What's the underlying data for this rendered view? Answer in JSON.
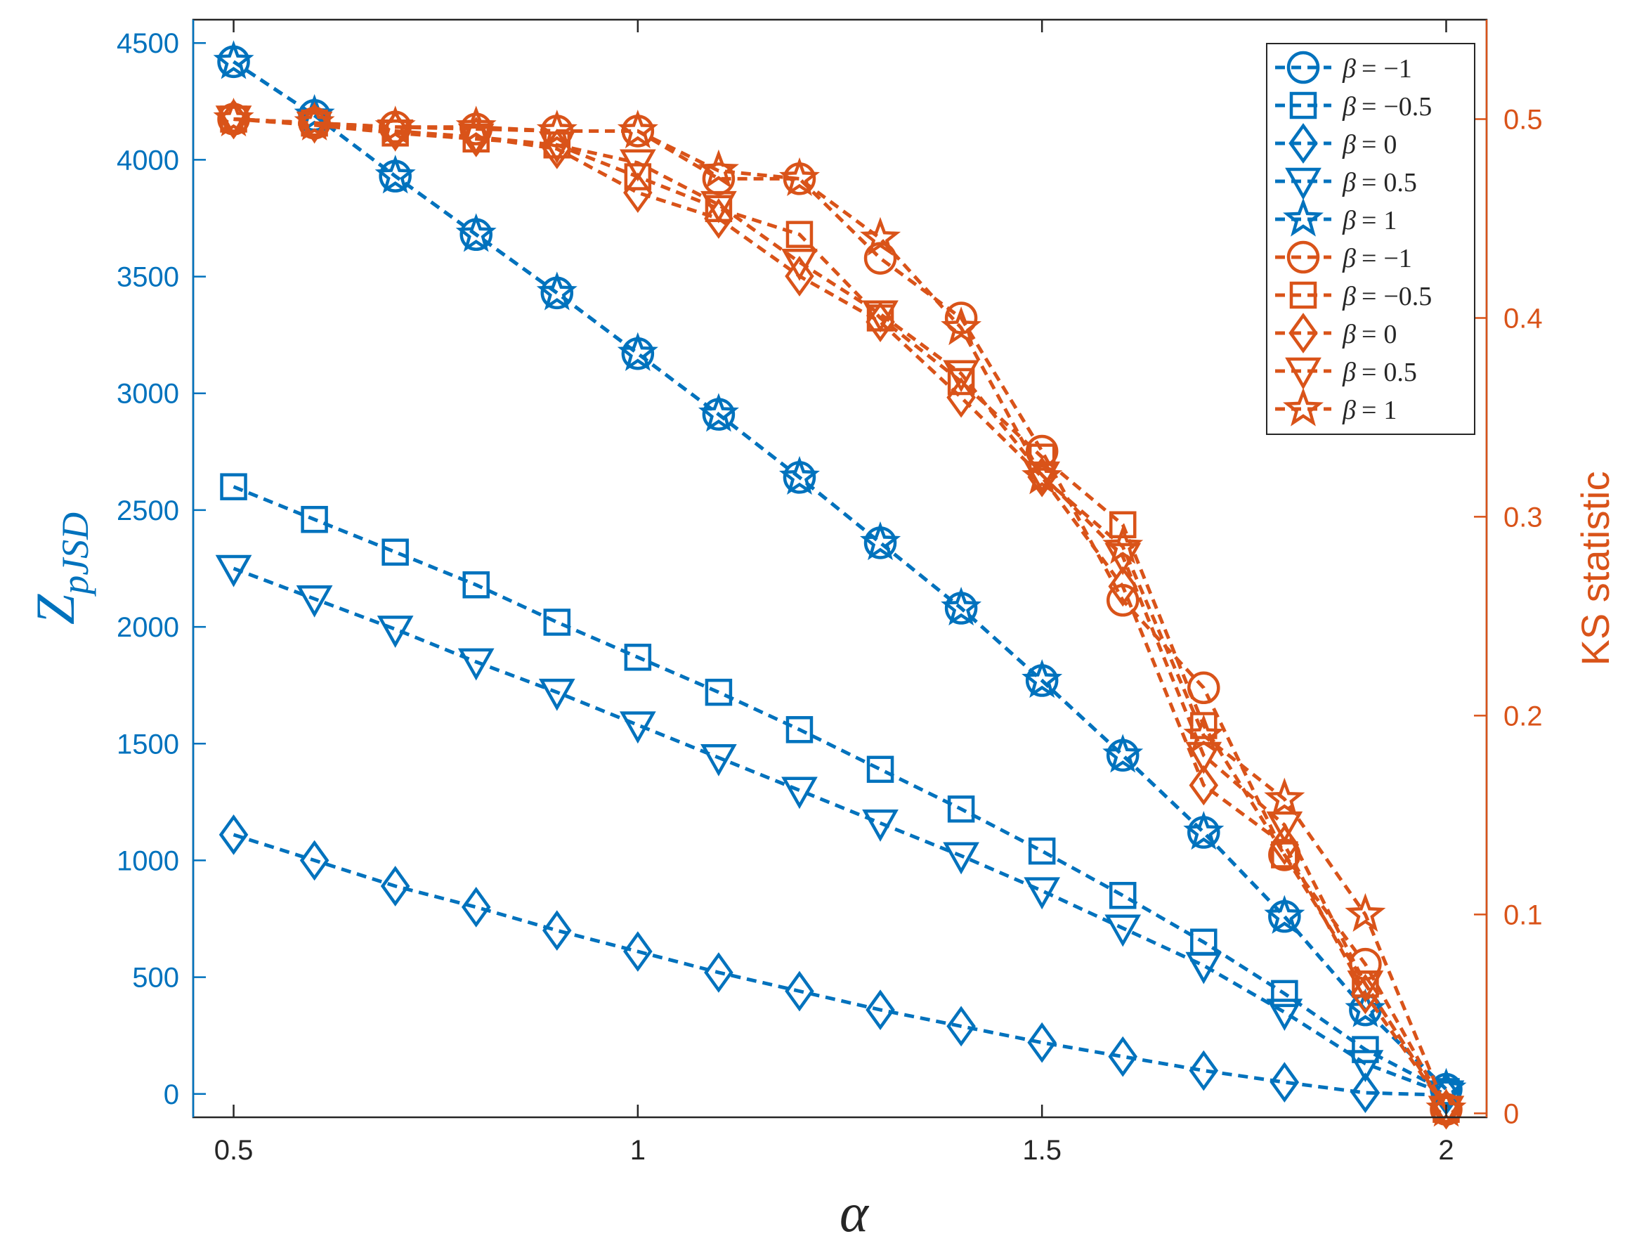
{
  "chart_data": {
    "type": "line",
    "title": "",
    "xlabel": "α",
    "ylabel_left_base": "Z",
    "ylabel_left_sub": "pJSD",
    "ylabel_right": "KS statistic",
    "x": [
      0.5,
      0.6,
      0.7,
      0.8,
      0.9,
      1.0,
      1.1,
      1.2,
      1.3,
      1.4,
      1.5,
      1.6,
      1.7,
      1.8,
      1.9,
      2.0
    ],
    "xlim": [
      0.45,
      2.05
    ],
    "ylim_left": [
      -100,
      4600
    ],
    "ylim_right": [
      -0.002,
      0.55
    ],
    "xticks": [
      0.5,
      1,
      1.5,
      2
    ],
    "xtick_labels": [
      "0.5",
      "1",
      "1.5",
      "2"
    ],
    "yticks_left": [
      0,
      500,
      1000,
      1500,
      2000,
      2500,
      3000,
      3500,
      4000,
      4500
    ],
    "ytick_labels_left": [
      "0",
      "500",
      "1000",
      "1500",
      "2000",
      "2500",
      "3000",
      "3500",
      "4000",
      "4500"
    ],
    "yticks_right": [
      0,
      0.1,
      0.2,
      0.3,
      0.4,
      0.5
    ],
    "ytick_labels_right": [
      "0",
      "0.1",
      "0.2",
      "0.3",
      "0.4",
      "0.5"
    ],
    "colors": {
      "left": "#0072BD",
      "right": "#D95319",
      "axis": "#262626"
    },
    "grid": false,
    "legend_position": "top-right",
    "series": [
      {
        "name": "β = −1",
        "legend_beta": "β",
        "legend_value": "−1",
        "axis": "left",
        "marker": "circle",
        "values": [
          4420,
          4190,
          3930,
          3680,
          3430,
          3170,
          2910,
          2640,
          2360,
          2080,
          1770,
          1450,
          1120,
          760,
          360,
          20
        ]
      },
      {
        "name": "β = −0.5",
        "legend_beta": "β",
        "legend_value": "−0.5",
        "axis": "left",
        "marker": "square",
        "values": [
          2600,
          2460,
          2320,
          2180,
          2020,
          1870,
          1720,
          1560,
          1390,
          1220,
          1040,
          850,
          650,
          430,
          190,
          10
        ]
      },
      {
        "name": "β = 0",
        "legend_beta": "β",
        "legend_value": "0",
        "axis": "left",
        "marker": "diamond",
        "values": [
          1110,
          1000,
          890,
          800,
          700,
          610,
          520,
          440,
          360,
          290,
          220,
          160,
          100,
          50,
          5,
          -5
        ]
      },
      {
        "name": "β = 0.5",
        "legend_beta": "β",
        "legend_value": "0.5",
        "axis": "left",
        "marker": "triangle-down",
        "values": [
          2250,
          2120,
          1990,
          1850,
          1720,
          1580,
          1440,
          1300,
          1160,
          1020,
          870,
          710,
          550,
          350,
          130,
          0
        ]
      },
      {
        "name": "β = 1",
        "legend_beta": "β",
        "legend_value": "1",
        "axis": "left",
        "marker": "star",
        "values": [
          4420,
          4190,
          3930,
          3680,
          3430,
          3170,
          2910,
          2640,
          2360,
          2080,
          1770,
          1450,
          1120,
          760,
          360,
          20
        ]
      },
      {
        "name": "β = −1",
        "legend_beta": "β",
        "legend_value": "−1",
        "axis": "right",
        "marker": "circle",
        "values": [
          0.5,
          0.498,
          0.496,
          0.495,
          0.494,
          0.494,
          0.47,
          0.47,
          0.43,
          0.4,
          0.333,
          0.258,
          0.214,
          0.13,
          0.075,
          0.002
        ]
      },
      {
        "name": "β = −0.5",
        "legend_beta": "β",
        "legend_value": "−0.5",
        "axis": "right",
        "marker": "square",
        "values": [
          0.5,
          0.498,
          0.493,
          0.49,
          0.487,
          0.471,
          0.455,
          0.442,
          0.4,
          0.368,
          0.33,
          0.296,
          0.195,
          0.13,
          0.065,
          0.002
        ]
      },
      {
        "name": "β = 0",
        "legend_beta": "β",
        "legend_value": "0",
        "axis": "right",
        "marker": "diamond",
        "values": [
          0.5,
          0.498,
          0.494,
          0.491,
          0.485,
          0.463,
          0.45,
          0.421,
          0.398,
          0.36,
          0.32,
          0.265,
          0.165,
          0.135,
          0.06,
          0.002
        ]
      },
      {
        "name": "β = 0.5",
        "legend_beta": "β",
        "legend_value": "0.5",
        "axis": "right",
        "marker": "triangle-down",
        "values": [
          0.5,
          0.497,
          0.493,
          0.491,
          0.487,
          0.478,
          0.457,
          0.428,
          0.402,
          0.372,
          0.321,
          0.28,
          0.18,
          0.145,
          0.065,
          0.002
        ]
      },
      {
        "name": "β = 1",
        "legend_beta": "β",
        "legend_value": "1",
        "axis": "right",
        "marker": "star",
        "values": [
          0.5,
          0.498,
          0.496,
          0.496,
          0.494,
          0.494,
          0.474,
          0.47,
          0.44,
          0.395,
          0.32,
          0.285,
          0.19,
          0.158,
          0.1,
          0.002
        ]
      }
    ]
  }
}
